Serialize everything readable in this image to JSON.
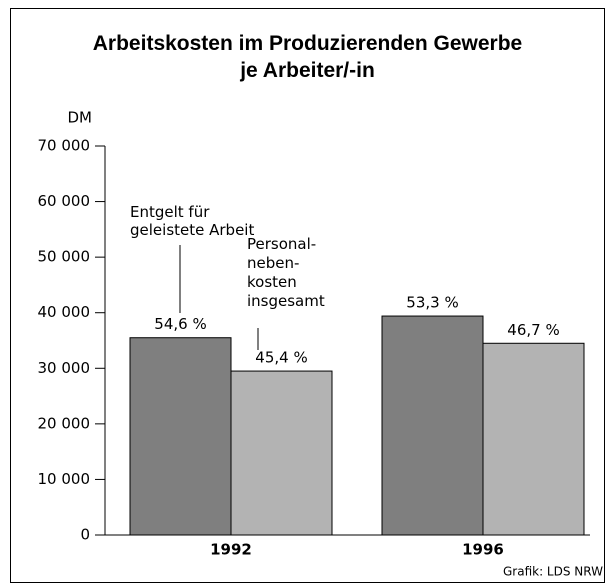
{
  "chart_data": {
    "type": "bar",
    "title": "Arbeitskosten im Produzierenden Gewerbe\nje Arbeiter/-in",
    "y_label": "DM",
    "categories": [
      "1992",
      "1996"
    ],
    "series": [
      {
        "name": "Entgelt für\ngeleistete Arbeit",
        "color": "#7f7f7f",
        "values": [
          35500,
          39400
        ],
        "share_labels": [
          "54,6 %",
          "53,3 %"
        ]
      },
      {
        "name": "Personal-\nneben-\nkosten\ninsgesamt",
        "color": "#b3b3b3",
        "values": [
          29500,
          34500
        ],
        "share_labels": [
          "45,4 %",
          "46,7 %"
        ]
      }
    ],
    "ylim": [
      0,
      70000
    ],
    "yticks": [
      0,
      {
        "value": 10000,
        "label": "10 000"
      },
      {
        "value": 20000,
        "label": "20 000"
      },
      {
        "value": 30000,
        "label": "30 000"
      },
      {
        "value": 40000,
        "label": "40 000"
      },
      {
        "value": 50000,
        "label": "50 000"
      },
      {
        "value": 60000,
        "label": "60 000"
      },
      {
        "value": 70000,
        "label": "70 000"
      }
    ],
    "source": "Grafik: LDS NRW"
  }
}
